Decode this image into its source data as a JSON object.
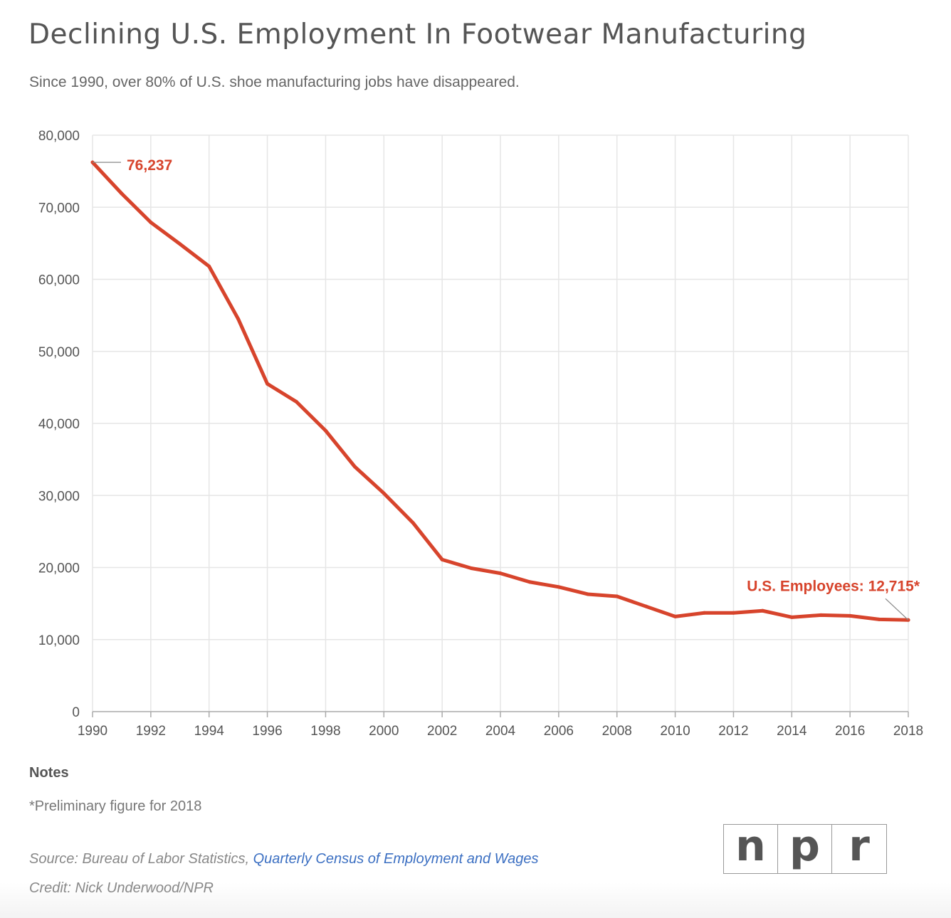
{
  "title": "Declining U.S. Employment In Footwear Manufacturing",
  "subtitle": "Since 1990, over 80% of U.S. shoe manufacturing jobs have disappeared.",
  "chart_data": {
    "type": "line",
    "title": "Declining U.S. Employment In Footwear Manufacturing",
    "subtitle": "Since 1990, over 80% of U.S. shoe manufacturing jobs have disappeared.",
    "xlabel": "",
    "ylabel": "",
    "xlim": [
      1990,
      2018
    ],
    "ylim": [
      0,
      80000
    ],
    "grid": true,
    "line_color": "#d7442c",
    "x_ticks": [
      1990,
      1992,
      1994,
      1996,
      1998,
      2000,
      2002,
      2004,
      2006,
      2008,
      2010,
      2012,
      2014,
      2016,
      2018
    ],
    "y_ticks": [
      0,
      10000,
      20000,
      30000,
      40000,
      50000,
      60000,
      70000,
      80000
    ],
    "x_tick_labels": [
      "1990",
      "1992",
      "1994",
      "1996",
      "1998",
      "2000",
      "2002",
      "2004",
      "2006",
      "2008",
      "2010",
      "2012",
      "2014",
      "2016",
      "2018"
    ],
    "y_tick_labels": [
      "0",
      "10,000",
      "20,000",
      "30,000",
      "40,000",
      "50,000",
      "60,000",
      "70,000",
      "80,000"
    ],
    "series": [
      {
        "x": [
          1990,
          1991,
          1992,
          1993,
          1994,
          1995,
          1996,
          1997,
          1998,
          1999,
          2000,
          2001,
          2002,
          2003,
          2004,
          2005,
          2006,
          2007,
          2008,
          2009,
          2010,
          2011,
          2012,
          2013,
          2014,
          2015,
          2016,
          2017,
          2018
        ],
        "values": [
          76237,
          71900,
          67900,
          64900,
          61800,
          54500,
          45500,
          43000,
          39000,
          34000,
          30300,
          26200,
          21100,
          19900,
          19200,
          18000,
          17300,
          16300,
          16000,
          14600,
          13200,
          13700,
          13700,
          14000,
          13100,
          13400,
          13300,
          12800,
          12715
        ]
      }
    ],
    "annotations": [
      {
        "text": "76,237",
        "x": 1990,
        "y": 76237
      },
      {
        "text": "U.S. Employees: 12,715*",
        "x": 2018,
        "y": 12715
      }
    ]
  },
  "notes": {
    "heading": "Notes",
    "text": "*Preliminary figure for 2018"
  },
  "source": {
    "prefix": "Source: Bureau of Labor Statistics, ",
    "link_text": "Quarterly Census of Employment and Wages"
  },
  "credit": "Credit: Nick Underwood/NPR",
  "logo": {
    "letters": [
      "n",
      "p",
      "r"
    ]
  }
}
